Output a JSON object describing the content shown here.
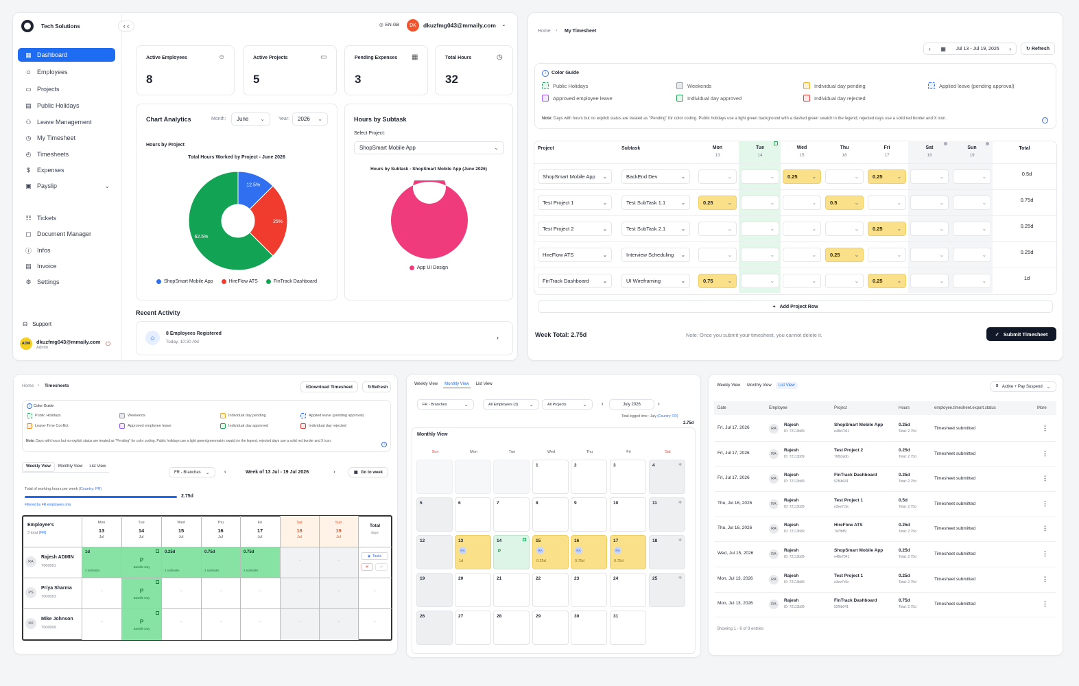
{
  "brand": "Tech Solutions",
  "lang": "EN-GB",
  "user_initials": "DK",
  "user_email": "dkuzfmg043@mmaily.com",
  "nav": [
    "Dashboard",
    "Employees",
    "Projects",
    "Public Holidays",
    "Leave Management",
    "My Timesheet",
    "Timesheets",
    "Expenses",
    "Payslip",
    "Tickets",
    "Document Manager",
    "Infos",
    "Invoice",
    "Settings"
  ],
  "support": "Support",
  "profile": {
    "initials": "ADM",
    "email": "dkuzfmg043@mmaily.com",
    "role": "Admin"
  },
  "stats": [
    {
      "label": "Active Employees",
      "value": "8"
    },
    {
      "label": "Active Projects",
      "value": "5"
    },
    {
      "label": "Pending Expenses",
      "value": "3"
    },
    {
      "label": "Total Hours",
      "value": "32"
    }
  ],
  "analytics": {
    "title": "Chart Analytics",
    "month_label": "Month:",
    "month": "June",
    "year_label": "Year:",
    "year": "2026",
    "sub": "Hours by Project",
    "chart_title": "Total Hours Worked by Project - June 2026"
  },
  "subtask": {
    "title": "Hours by Subtask",
    "select_label": "Select Project:",
    "project": "ShopSmart Mobile App",
    "chart_title": "Hours by Subtask - ShopSmart Mobile App (June 2026)",
    "legend": "App UI Design"
  },
  "chart_data": [
    {
      "type": "pie",
      "title": "Total Hours Worked by Project - June 2026",
      "categories": [
        "ShopSmart Mobile App",
        "HireFlow ATS",
        "FinTrack Dashboard"
      ],
      "values": [
        12.5,
        25,
        62.5
      ],
      "labels": [
        "12.5%",
        "25%",
        "62.5%"
      ],
      "colors": [
        "#2f6ff0",
        "#f03c2e",
        "#12a454"
      ]
    },
    {
      "type": "pie",
      "title": "Hours by Subtask - ShopSmart Mobile App (June 2026)",
      "categories": [
        "App UI Design"
      ],
      "values": [
        100
      ],
      "colors": [
        "#ef3b7c"
      ]
    }
  ],
  "recent": {
    "title": "Recent Activity",
    "item": "8 Employees Registered",
    "time": "Today, 10:30 AM"
  },
  "mytimesheet": {
    "crumbs": [
      "Home",
      "My Timesheet"
    ],
    "range": "Jul 13 - Jul 19, 2026",
    "refresh": "Refresh",
    "guide_title": "Color Guide",
    "legend": [
      "Public Holidays",
      "Weekends",
      "Individual day pending",
      "Applied leave (pending approval)",
      "Approved employee leave",
      "Individual day approved",
      "Individual day rejected"
    ],
    "note_b": "Note:",
    "note": "Days with hours but no explicit status are treated as \"Pending\" for color coding. Public holidays use a light green background with a dashed green swatch in the legend; rejected days use a solid red border and X icon.",
    "headers": [
      "Project",
      "Subtask"
    ],
    "days": [
      {
        "d": "Mon",
        "n": "13"
      },
      {
        "d": "Tue",
        "n": "14"
      },
      {
        "d": "Wed",
        "n": "15"
      },
      {
        "d": "Thu",
        "n": "16"
      },
      {
        "d": "Fri",
        "n": "17"
      },
      {
        "d": "Sat",
        "n": "18"
      },
      {
        "d": "Sun",
        "n": "19"
      }
    ],
    "total_label": "Total",
    "rows": [
      {
        "project": "ShopSmart Mobile App",
        "subtask": "BackEnd Dev",
        "vals": [
          "",
          "",
          "0.25",
          "",
          "0.25",
          "",
          ""
        ],
        "total": "0.5d"
      },
      {
        "project": "Test Project 1",
        "subtask": "Test SubTask 1.1",
        "vals": [
          "0.25",
          "",
          "",
          "0.5",
          "",
          "",
          ""
        ],
        "total": "0.75d"
      },
      {
        "project": "Test Project 2",
        "subtask": "Test SubTask 2.1",
        "vals": [
          "",
          "",
          "",
          "",
          "0.25",
          "",
          ""
        ],
        "total": "0.25d"
      },
      {
        "project": "HireFlow ATS",
        "subtask": "Interview Scheduling",
        "vals": [
          "",
          "",
          "",
          "0.25",
          "",
          "",
          ""
        ],
        "total": "0.25d"
      },
      {
        "project": "FinTrack Dashboard",
        "subtask": "UI Wireframing",
        "vals": [
          "0.75",
          "",
          "",
          "",
          "0.25",
          "",
          ""
        ],
        "total": "1d"
      }
    ],
    "add_row": "Add Project Row",
    "week_total": "Week Total: 2.75d",
    "submit_note": "Note: Once you submit your timesheet, you cannot delete it.",
    "submit": "Submit Timesheet"
  },
  "timesheets": {
    "crumbs": [
      "Home",
      "Timesheets"
    ],
    "download": "Download Timesheet",
    "refresh": "Refresh",
    "guide_title": "Color Guide",
    "legend": [
      "Public Holidays",
      "Weekends",
      "Individual day pending",
      "Applied leave (pending approval)",
      "Leave-Time Conflict",
      "Approved employee leave",
      "Individual day approved",
      "Individual day rejected"
    ],
    "note_b": "Note:",
    "note": "Days with hours but no explicit status are treated as \"Pending\" for color coding. Public holidays use a light green/greenmatrix swatch in the legend; rejected days use a solid red border and X icon.",
    "tabs": [
      "Weekly View",
      "Monthly View",
      "List View"
    ],
    "branch": "FR - Branches",
    "week": "Week of 13 Jul - 19 Jul 2026",
    "goto": "Go to week",
    "working_label": "Total of working hours per week",
    "country": "(Country: FR)",
    "working_value": "2.75d",
    "filtered": "Filtered by FR employees only",
    "emp_header": "Employee's",
    "emp_total": "3 total",
    "emp_total_fr": "(FR)",
    "days": [
      {
        "d": "Mon",
        "n": "13",
        "m": "Jul"
      },
      {
        "d": "Tue",
        "n": "14",
        "m": "Jul"
      },
      {
        "d": "Wed",
        "n": "15",
        "m": "Jul"
      },
      {
        "d": "Thu",
        "n": "16",
        "m": "Jul"
      },
      {
        "d": "Fri",
        "n": "17",
        "m": "Jul"
      },
      {
        "d": "Sat",
        "n": "18",
        "m": "Jul"
      },
      {
        "d": "Sun",
        "n": "19",
        "m": "Jul"
      }
    ],
    "total": "Total",
    "total_sub": "days",
    "emps": [
      {
        "ini": "RA",
        "name": "Rajesh ADMIN",
        "id": "T000001",
        "cells": [
          {
            "v": "1d",
            "s": "2 subtasks"
          },
          {
            "v": "P",
            "s": "Bastille Day"
          },
          {
            "v": "0.25d",
            "s": "1 subtasks"
          },
          {
            "v": "0.75d",
            "s": "2 subtasks"
          },
          {
            "v": "0.75d",
            "s": "3 subtasks"
          },
          {
            "v": "–",
            "s": ""
          },
          {
            "v": "–",
            "s": ""
          }
        ],
        "tasks": "Tasks"
      },
      {
        "ini": "PS",
        "name": "Priya Sharma",
        "id": "T000003",
        "cells": [
          {
            "v": "–",
            "s": ""
          },
          {
            "v": "P",
            "s": "Bastille Day"
          },
          {
            "v": "–",
            "s": ""
          },
          {
            "v": "–",
            "s": ""
          },
          {
            "v": "–",
            "s": ""
          },
          {
            "v": "–",
            "s": ""
          },
          {
            "v": "–",
            "s": ""
          }
        ],
        "tasks": "–"
      },
      {
        "ini": "MJ",
        "name": "Mike Johnson",
        "id": "T000009",
        "cells": [
          {
            "v": "–",
            "s": ""
          },
          {
            "v": "P",
            "s": "Bastille Day"
          },
          {
            "v": "–",
            "s": ""
          },
          {
            "v": "–",
            "s": ""
          },
          {
            "v": "–",
            "s": ""
          },
          {
            "v": "–",
            "s": ""
          },
          {
            "v": "–",
            "s": ""
          }
        ],
        "tasks": "–"
      }
    ]
  },
  "monthly": {
    "tabs": [
      "Weekly View",
      "Monthly View",
      "List View"
    ],
    "branch": "FR - Branches",
    "employees": "All Employees (3)",
    "projects": "All Projects",
    "month": "July 2026",
    "logged_label": "Total logged time : July",
    "country": "(Country: FR)",
    "logged_value": "2.75d",
    "title": "Monthly View",
    "dow": [
      "Sun",
      "Mon",
      "Tue",
      "Wed",
      "Thu",
      "Fri",
      "Sat"
    ],
    "week3": {
      "13": {
        "ini": "RA",
        "v": "1d"
      },
      "14": {
        "ini": "P",
        "v": ""
      },
      "15": {
        "ini": "RA",
        "v": "0.25d"
      },
      "16": {
        "ini": "RA",
        "v": "0.75d"
      },
      "17": {
        "ini": "RA",
        "v": "0.75d"
      }
    }
  },
  "listview": {
    "tabs": [
      "Weekly View",
      "Monthly View",
      "List View"
    ],
    "filter": "Active + Pay Suspend",
    "cols": [
      "Date",
      "Employee",
      "Project",
      "Hours",
      "employee.timesheet.export.status",
      "More"
    ],
    "rows": [
      {
        "date": "Fri, Jul 17, 2026",
        "emp": "Rajesh",
        "eid": "ID: 72113b89",
        "proj": "ShopSmart Mobile App",
        "pid": "e48e7041",
        "hours": "0.25d",
        "tot": "Total: 2.75d",
        "status": "Timesheet submitted"
      },
      {
        "date": "Fri, Jul 17, 2026",
        "emp": "Rajesh",
        "eid": "ID: 72113b89",
        "proj": "Test Project 2",
        "pid": "76fb3a0b",
        "hours": "0.25d",
        "tot": "Total: 2.75d",
        "status": "Timesheet submitted"
      },
      {
        "date": "Fri, Jul 17, 2026",
        "emp": "Rajesh",
        "eid": "ID: 72113b89",
        "proj": "FinTrack Dashboard",
        "pid": "52f6b041",
        "hours": "0.25d",
        "tot": "Total: 2.75d",
        "status": "Timesheet submitted"
      },
      {
        "date": "Thu, Jul 16, 2026",
        "emp": "Rajesh",
        "eid": "ID: 72113b89",
        "proj": "Test Project 1",
        "pid": "e3ee7c5c",
        "hours": "0.5d",
        "tot": "Total: 2.75d",
        "status": "Timesheet submitted"
      },
      {
        "date": "Thu, Jul 16, 2026",
        "emp": "Rajesh",
        "eid": "ID: 72113b89",
        "proj": "HireFlow ATS",
        "pid": "7d7fbff9",
        "hours": "0.25d",
        "tot": "Total: 2.75d",
        "status": "Timesheet submitted"
      },
      {
        "date": "Wed, Jul 15, 2026",
        "emp": "Rajesh",
        "eid": "ID: 72113b89",
        "proj": "ShopSmart Mobile App",
        "pid": "e48e7041",
        "hours": "0.25d",
        "tot": "Total: 2.75d",
        "status": "Timesheet submitted"
      },
      {
        "date": "Mon, Jul 13, 2026",
        "emp": "Rajesh",
        "eid": "ID: 72113b89",
        "proj": "Test Project 1",
        "pid": "e3ee7c5c",
        "hours": "0.25d",
        "tot": "Total: 2.75d",
        "status": "Timesheet submitted"
      },
      {
        "date": "Mon, Jul 13, 2026",
        "emp": "Rajesh",
        "eid": "ID: 72113b89",
        "proj": "FinTrack Dashboard",
        "pid": "52f6b041",
        "hours": "0.75d",
        "tot": "Total: 2.75d",
        "status": "Timesheet submitted"
      }
    ],
    "footer": "Showing 1 - 8 of 8 entries"
  }
}
